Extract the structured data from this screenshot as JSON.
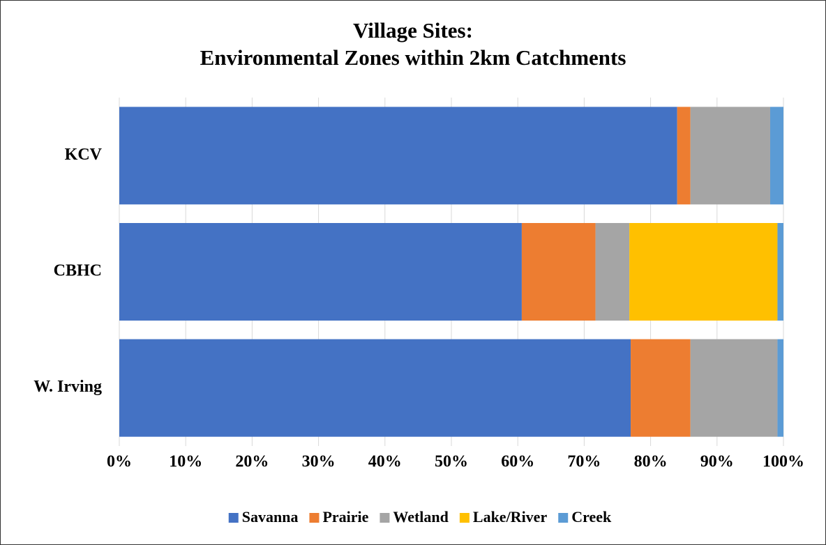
{
  "chart_data": {
    "type": "stacked_bar_horizontal",
    "title": [
      "Village Sites:",
      "Environmental Zones within 2km Catchments"
    ],
    "categories": [
      "KCV",
      "CBHC",
      "W. Irving"
    ],
    "series": [
      {
        "name": "Savanna",
        "color": "#4472c4",
        "values": [
          84,
          60.6,
          77
        ]
      },
      {
        "name": "Prairie",
        "color": "#ed7d31",
        "values": [
          2,
          11.1,
          9
        ]
      },
      {
        "name": "Wetland",
        "color": "#a5a5a5",
        "values": [
          12,
          5.1,
          13.1
        ]
      },
      {
        "name": "Lake/River",
        "color": "#ffc000",
        "values": [
          0,
          22.3,
          0
        ]
      },
      {
        "name": "Creek",
        "color": "#5b9bd5",
        "values": [
          2,
          0.9,
          0.9
        ]
      }
    ],
    "xlim": [
      0,
      100
    ],
    "xticks": [
      {
        "value": 0,
        "label": "0%"
      },
      {
        "value": 10,
        "label": "10%"
      },
      {
        "value": 20,
        "label": "20%"
      },
      {
        "value": 30,
        "label": "30%"
      },
      {
        "value": 40,
        "label": "40%"
      },
      {
        "value": 50,
        "label": "50%"
      },
      {
        "value": 60,
        "label": "60%"
      },
      {
        "value": 70,
        "label": "70%"
      },
      {
        "value": 80,
        "label": "80%"
      },
      {
        "value": 90,
        "label": "90%"
      },
      {
        "value": 100,
        "label": "100%"
      }
    ],
    "grid": true,
    "legend": "bottom"
  }
}
